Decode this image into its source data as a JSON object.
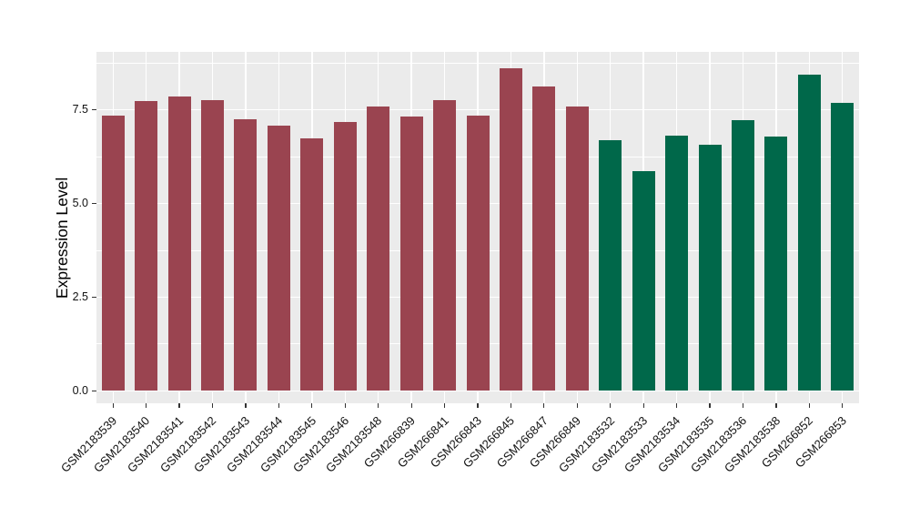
{
  "figure": {
    "background": "#FFFFFF",
    "panel_bg": "#EBEBEB",
    "grid_color": "#FFFFFF",
    "tick_color": "#333333"
  },
  "chart_data": {
    "type": "bar",
    "title": "",
    "xlabel": "",
    "ylabel": "Expression Level",
    "legend": "none",
    "grid": "on",
    "categories": [
      "GSM2183539",
      "GSM2183540",
      "GSM2183541",
      "GSM2183542",
      "GSM2183543",
      "GSM2183544",
      "GSM2183545",
      "GSM2183546",
      "GSM2183548",
      "GSM266839",
      "GSM266841",
      "GSM266843",
      "GSM266845",
      "GSM266847",
      "GSM266849",
      "GSM2183532",
      "GSM2183533",
      "GSM2183534",
      "GSM2183535",
      "GSM2183536",
      "GSM2183538",
      "GSM266852",
      "GSM266853"
    ],
    "values": [
      7.34,
      7.73,
      7.85,
      7.75,
      7.26,
      7.09,
      6.75,
      7.17,
      7.6,
      7.32,
      7.76,
      7.35,
      8.62,
      8.13,
      7.58,
      6.7,
      5.87,
      6.82,
      6.57,
      7.22,
      6.78,
      8.44,
      7.68
    ],
    "groups": [
      "group1",
      "group1",
      "group1",
      "group1",
      "group1",
      "group1",
      "group1",
      "group1",
      "group1",
      "group1",
      "group1",
      "group1",
      "group1",
      "group1",
      "group1",
      "group2",
      "group2",
      "group2",
      "group2",
      "group2",
      "group2",
      "group2",
      "group2"
    ],
    "group_colors": {
      "group1": "#9A4450",
      "group2": "#00684A"
    },
    "yticks": [
      0.0,
      2.5,
      5.0,
      7.5
    ],
    "ytick_labels": [
      "0.0",
      "2.5",
      "5.0",
      "7.5"
    ],
    "yticks_minor": [
      1.25,
      3.75,
      6.25,
      8.75
    ],
    "ylim": [
      -0.335,
      9.05
    ],
    "xtick_angle_deg": 45
  }
}
